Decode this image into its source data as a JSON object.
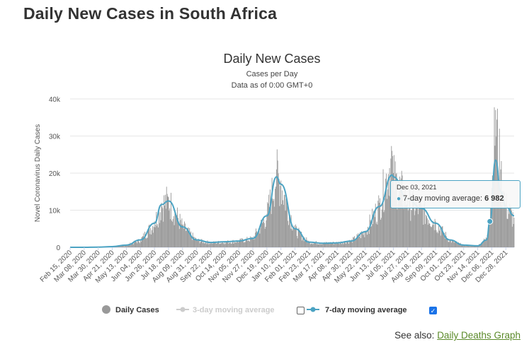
{
  "page": {
    "title": "Daily New Cases in South Africa",
    "see_also_prefix": "See also:",
    "see_also_link": "Daily Deaths Graph"
  },
  "tooltip": {
    "date": "Dec 03, 2021",
    "label": "7-day moving average:",
    "value": "6 982"
  },
  "legend": {
    "items": [
      {
        "label": "Daily Cases",
        "color": "#999999",
        "checked": null
      },
      {
        "label": "3-day moving average",
        "color": "#cccccc",
        "checked": false
      },
      {
        "label": "7-day moving average",
        "color": "#4ba3c3",
        "checked": true
      }
    ]
  },
  "colors": {
    "bars": "#999999",
    "line": "#4ba3c3",
    "grid": "#e6e6e6"
  },
  "chart_data": {
    "type": "bar",
    "title": "Daily New Cases",
    "subtitle": "Cases per Day",
    "subtitle2": "Data as of 0:00 GMT+0",
    "ylabel": "Novel Coronavirus Daily Cases",
    "xlabel": "",
    "ylim": [
      0,
      40000
    ],
    "yticks": [
      0,
      10000,
      20000,
      30000,
      40000
    ],
    "ytick_labels": [
      "0",
      "10k",
      "20k",
      "30k",
      "40k"
    ],
    "grid": true,
    "legend_position": "bottom",
    "x_start": "Feb 15, 2020",
    "x_end": "Jan 10, 2022",
    "x_tick_labels": [
      "Feb 15, 2020",
      "Mar 08, 2020",
      "Mar 30, 2020",
      "Apr 21, 2020",
      "May 13, 2020",
      "Jun 04, 2020",
      "Jun 26, 2020",
      "Jul 18, 2020",
      "Aug 09, 2020",
      "Aug 31, 2020",
      "Sep 22, 2020",
      "Oct 14, 2020",
      "Nov 05, 2020",
      "Nov 27, 2020",
      "Dec 19, 2020",
      "Jan 10, 2021",
      "Feb 01, 2021",
      "Feb 23, 2021",
      "Mar 17, 2021",
      "Apr 08, 2021",
      "Apr 30, 2021",
      "May 22, 2021",
      "Jun 13, 2021",
      "Jul 05, 2021",
      "Jul 27, 2021",
      "Aug 18, 2021",
      "Sep 09, 2021",
      "Oct 01, 2021",
      "Oct 23, 2021",
      "Nov 14, 2021",
      "Dec 06, 2021",
      "Dec 28, 2021"
    ],
    "series": [
      {
        "name": "Daily Cases",
        "kind": "bars",
        "dates": [
          "Feb 15, 2020",
          "Mar 08, 2020",
          "Mar 30, 2020",
          "Apr 21, 2020",
          "May 13, 2020",
          "Jun 04, 2020",
          "Jun 26, 2020",
          "Jul 07, 2020",
          "Jul 18, 2020",
          "Aug 09, 2020",
          "Aug 31, 2020",
          "Sep 22, 2020",
          "Oct 14, 2020",
          "Nov 05, 2020",
          "Nov 27, 2020",
          "Dec 19, 2020",
          "Jan 03, 2021",
          "Jan 10, 2021",
          "Feb 01, 2021",
          "Feb 23, 2021",
          "Mar 17, 2021",
          "Apr 08, 2021",
          "Apr 30, 2021",
          "May 22, 2021",
          "Jun 13, 2021",
          "Jul 03, 2021",
          "Jul 05, 2021",
          "Jul 27, 2021",
          "Aug 18, 2021",
          "Sep 09, 2021",
          "Oct 01, 2021",
          "Oct 23, 2021",
          "Nov 14, 2021",
          "Nov 28, 2021",
          "Dec 06, 2021",
          "Dec 12, 2021",
          "Dec 20, 2021",
          "Dec 28, 2021",
          "Jan 10, 2022"
        ],
        "values": [
          0,
          0,
          50,
          200,
          600,
          2000,
          7000,
          12000,
          13500,
          6000,
          2000,
          1300,
          1500,
          1800,
          2500,
          9000,
          21000,
          18000,
          5000,
          1500,
          1200,
          1300,
          1800,
          4500,
          12000,
          26000,
          20000,
          13500,
          11000,
          7000,
          2000,
          600,
          400,
          2500,
          16000,
          37000,
          21000,
          12000,
          8000
        ]
      },
      {
        "name": "7-day moving average",
        "kind": "line",
        "dates": [
          "Feb 15, 2020",
          "Mar 08, 2020",
          "Mar 30, 2020",
          "Apr 21, 2020",
          "May 13, 2020",
          "Jun 04, 2020",
          "Jun 26, 2020",
          "Jul 07, 2020",
          "Jul 18, 2020",
          "Aug 09, 2020",
          "Aug 31, 2020",
          "Sep 22, 2020",
          "Oct 14, 2020",
          "Nov 05, 2020",
          "Nov 27, 2020",
          "Dec 19, 2020",
          "Jan 03, 2021",
          "Jan 10, 2021",
          "Feb 01, 2021",
          "Feb 23, 2021",
          "Mar 17, 2021",
          "Apr 08, 2021",
          "Apr 30, 2021",
          "May 22, 2021",
          "Jun 13, 2021",
          "Jul 03, 2021",
          "Jul 05, 2021",
          "Jul 27, 2021",
          "Aug 18, 2021",
          "Sep 09, 2021",
          "Oct 01, 2021",
          "Oct 23, 2021",
          "Nov 14, 2021",
          "Nov 28, 2021",
          "Dec 03, 2021",
          "Dec 12, 2021",
          "Dec 20, 2021",
          "Dec 28, 2021",
          "Jan 10, 2022"
        ],
        "values": [
          0,
          0,
          50,
          200,
          600,
          2000,
          6500,
          11500,
          12500,
          5500,
          2000,
          1300,
          1500,
          1700,
          2400,
          8500,
          19000,
          17000,
          5000,
          1400,
          1100,
          1200,
          1700,
          4200,
          11000,
          19500,
          19000,
          13000,
          10500,
          6500,
          2000,
          600,
          400,
          2000,
          6982,
          23500,
          15000,
          11000,
          8500
        ]
      }
    ]
  }
}
